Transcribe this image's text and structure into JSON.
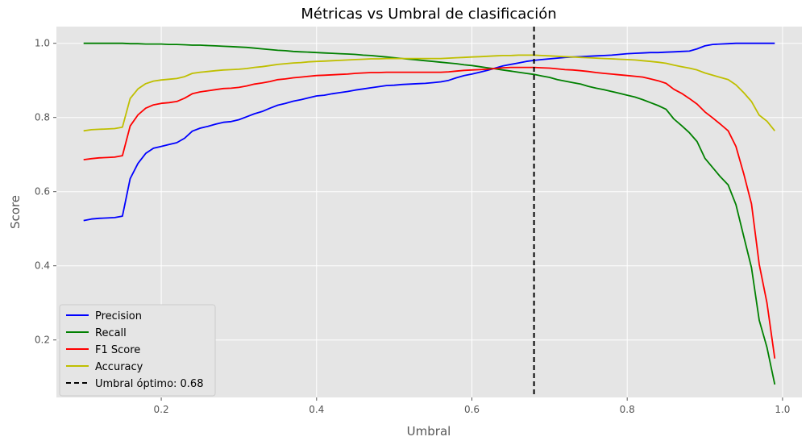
{
  "chart_data": {
    "type": "line",
    "title": "Métricas vs Umbral de clasificación",
    "xlabel": "Umbral",
    "ylabel": "Score",
    "xlim": [
      0.065,
      1.025
    ],
    "ylim": [
      0.045,
      1.045
    ],
    "xticks": [
      0.2,
      0.4,
      0.6,
      0.8,
      1.0
    ],
    "xtick_labels": [
      "0.2",
      "0.4",
      "0.6",
      "0.8",
      "1.0"
    ],
    "yticks": [
      0.2,
      0.4,
      0.6,
      0.8,
      1.0
    ],
    "ytick_labels": [
      "0.2",
      "0.4",
      "0.6",
      "0.8",
      "1.0"
    ],
    "grid": true,
    "legend_position": "lower-left",
    "x": [
      0.1,
      0.11,
      0.12,
      0.13,
      0.14,
      0.15,
      0.16,
      0.17,
      0.18,
      0.19,
      0.2,
      0.21,
      0.22,
      0.23,
      0.24,
      0.25,
      0.26,
      0.27,
      0.28,
      0.29,
      0.3,
      0.31,
      0.32,
      0.33,
      0.34,
      0.35,
      0.36,
      0.37,
      0.38,
      0.39,
      0.4,
      0.41,
      0.42,
      0.43,
      0.44,
      0.45,
      0.46,
      0.47,
      0.48,
      0.49,
      0.5,
      0.51,
      0.52,
      0.53,
      0.54,
      0.55,
      0.56,
      0.57,
      0.58,
      0.59,
      0.6,
      0.61,
      0.62,
      0.63,
      0.64,
      0.65,
      0.66,
      0.67,
      0.68,
      0.69,
      0.7,
      0.71,
      0.72,
      0.73,
      0.74,
      0.75,
      0.76,
      0.77,
      0.78,
      0.79,
      0.8,
      0.81,
      0.82,
      0.83,
      0.84,
      0.85,
      0.86,
      0.87,
      0.88,
      0.89,
      0.9,
      0.91,
      0.92,
      0.93,
      0.94,
      0.95,
      0.96,
      0.97,
      0.98,
      0.99
    ],
    "series": [
      {
        "name": "Precision",
        "color": "#0000ff",
        "values": [
          0.522,
          0.526,
          0.528,
          0.529,
          0.53,
          0.534,
          0.635,
          0.676,
          0.703,
          0.717,
          0.722,
          0.727,
          0.732,
          0.744,
          0.763,
          0.771,
          0.776,
          0.782,
          0.787,
          0.789,
          0.794,
          0.802,
          0.81,
          0.816,
          0.825,
          0.833,
          0.838,
          0.844,
          0.848,
          0.853,
          0.858,
          0.86,
          0.864,
          0.867,
          0.87,
          0.874,
          0.877,
          0.88,
          0.883,
          0.886,
          0.887,
          0.889,
          0.89,
          0.891,
          0.892,
          0.894,
          0.896,
          0.9,
          0.907,
          0.913,
          0.917,
          0.922,
          0.927,
          0.933,
          0.939,
          0.943,
          0.947,
          0.951,
          0.954,
          0.956,
          0.958,
          0.96,
          0.962,
          0.963,
          0.964,
          0.965,
          0.966,
          0.967,
          0.968,
          0.97,
          0.972,
          0.973,
          0.974,
          0.975,
          0.975,
          0.976,
          0.977,
          0.978,
          0.979,
          0.985,
          0.993,
          0.997,
          0.998,
          0.999,
          1.0,
          1.0,
          1.0,
          1.0,
          1.0,
          1.0
        ]
      },
      {
        "name": "Recall",
        "color": "#008000",
        "values": [
          1.0,
          1.0,
          1.0,
          1.0,
          1.0,
          1.0,
          0.999,
          0.999,
          0.998,
          0.998,
          0.998,
          0.997,
          0.997,
          0.996,
          0.995,
          0.995,
          0.994,
          0.993,
          0.992,
          0.991,
          0.99,
          0.989,
          0.987,
          0.985,
          0.983,
          0.981,
          0.98,
          0.978,
          0.977,
          0.976,
          0.975,
          0.974,
          0.973,
          0.972,
          0.971,
          0.97,
          0.968,
          0.967,
          0.965,
          0.963,
          0.961,
          0.959,
          0.957,
          0.955,
          0.953,
          0.951,
          0.949,
          0.947,
          0.945,
          0.942,
          0.94,
          0.937,
          0.934,
          0.931,
          0.928,
          0.925,
          0.922,
          0.919,
          0.916,
          0.912,
          0.908,
          0.902,
          0.898,
          0.894,
          0.89,
          0.884,
          0.879,
          0.875,
          0.87,
          0.865,
          0.86,
          0.855,
          0.848,
          0.84,
          0.832,
          0.822,
          0.796,
          0.778,
          0.759,
          0.735,
          0.69,
          0.665,
          0.64,
          0.618,
          0.565,
          0.48,
          0.395,
          0.253,
          0.18,
          0.08
        ]
      },
      {
        "name": "F1 Score",
        "color": "#ff0000",
        "values": [
          0.686,
          0.689,
          0.691,
          0.692,
          0.693,
          0.697,
          0.777,
          0.807,
          0.825,
          0.834,
          0.838,
          0.84,
          0.843,
          0.852,
          0.864,
          0.869,
          0.872,
          0.875,
          0.878,
          0.879,
          0.881,
          0.885,
          0.89,
          0.893,
          0.897,
          0.902,
          0.904,
          0.907,
          0.909,
          0.911,
          0.913,
          0.914,
          0.915,
          0.916,
          0.917,
          0.919,
          0.92,
          0.921,
          0.921,
          0.922,
          0.922,
          0.922,
          0.922,
          0.922,
          0.922,
          0.922,
          0.922,
          0.923,
          0.925,
          0.927,
          0.928,
          0.929,
          0.93,
          0.932,
          0.934,
          0.935,
          0.935,
          0.935,
          0.935,
          0.934,
          0.933,
          0.931,
          0.929,
          0.928,
          0.926,
          0.924,
          0.921,
          0.919,
          0.917,
          0.915,
          0.913,
          0.911,
          0.909,
          0.904,
          0.899,
          0.892,
          0.876,
          0.865,
          0.851,
          0.836,
          0.815,
          0.799,
          0.782,
          0.764,
          0.722,
          0.649,
          0.567,
          0.404,
          0.3,
          0.15
        ]
      },
      {
        "name": "Accuracy",
        "color": "#bfbf00",
        "values": [
          0.764,
          0.767,
          0.768,
          0.769,
          0.77,
          0.774,
          0.851,
          0.877,
          0.891,
          0.898,
          0.901,
          0.903,
          0.905,
          0.91,
          0.919,
          0.922,
          0.924,
          0.926,
          0.928,
          0.929,
          0.93,
          0.932,
          0.935,
          0.937,
          0.94,
          0.943,
          0.945,
          0.947,
          0.948,
          0.95,
          0.951,
          0.952,
          0.953,
          0.954,
          0.955,
          0.956,
          0.957,
          0.958,
          0.958,
          0.959,
          0.959,
          0.959,
          0.959,
          0.959,
          0.959,
          0.959,
          0.959,
          0.96,
          0.961,
          0.962,
          0.963,
          0.964,
          0.965,
          0.966,
          0.967,
          0.967,
          0.968,
          0.968,
          0.968,
          0.967,
          0.966,
          0.965,
          0.964,
          0.963,
          0.962,
          0.961,
          0.96,
          0.959,
          0.958,
          0.957,
          0.956,
          0.955,
          0.953,
          0.951,
          0.949,
          0.946,
          0.941,
          0.937,
          0.933,
          0.928,
          0.92,
          0.914,
          0.908,
          0.902,
          0.888,
          0.867,
          0.843,
          0.806,
          0.79,
          0.764
        ]
      }
    ],
    "threshold_line": {
      "x": 0.68,
      "color": "#000000",
      "label": "Umbral óptimo: 0.68"
    }
  }
}
